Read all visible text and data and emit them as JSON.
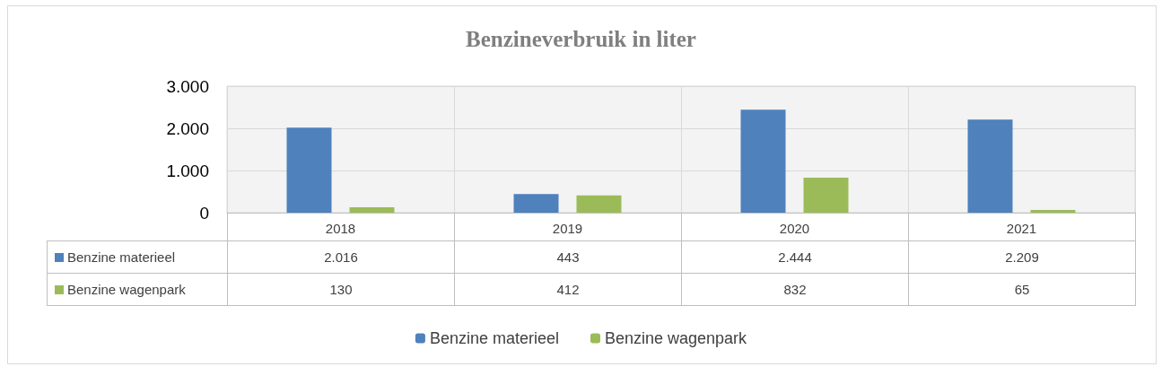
{
  "chart_data": {
    "type": "bar",
    "title": "Benzineverbruik in liter",
    "categories": [
      "2018",
      "2019",
      "2020",
      "2021"
    ],
    "series": [
      {
        "name": "Benzine materieel",
        "color": "#4f81bd",
        "values": [
          2016,
          443,
          2444,
          2209
        ],
        "value_labels": [
          "2.016",
          "443",
          "2.444",
          "2.209"
        ]
      },
      {
        "name": "Benzine wagenpark",
        "color": "#9bbb59",
        "values": [
          130,
          412,
          832,
          65
        ],
        "value_labels": [
          "130",
          "412",
          "832",
          "65"
        ]
      }
    ],
    "ylim": [
      0,
      3000
    ],
    "yticks": [
      {
        "value": 0,
        "label": "0"
      },
      {
        "value": 1000,
        "label": "1.000"
      },
      {
        "value": 2000,
        "label": "2.000"
      },
      {
        "value": 3000,
        "label": "3.000"
      }
    ],
    "grid": true,
    "legend": "bottom"
  }
}
